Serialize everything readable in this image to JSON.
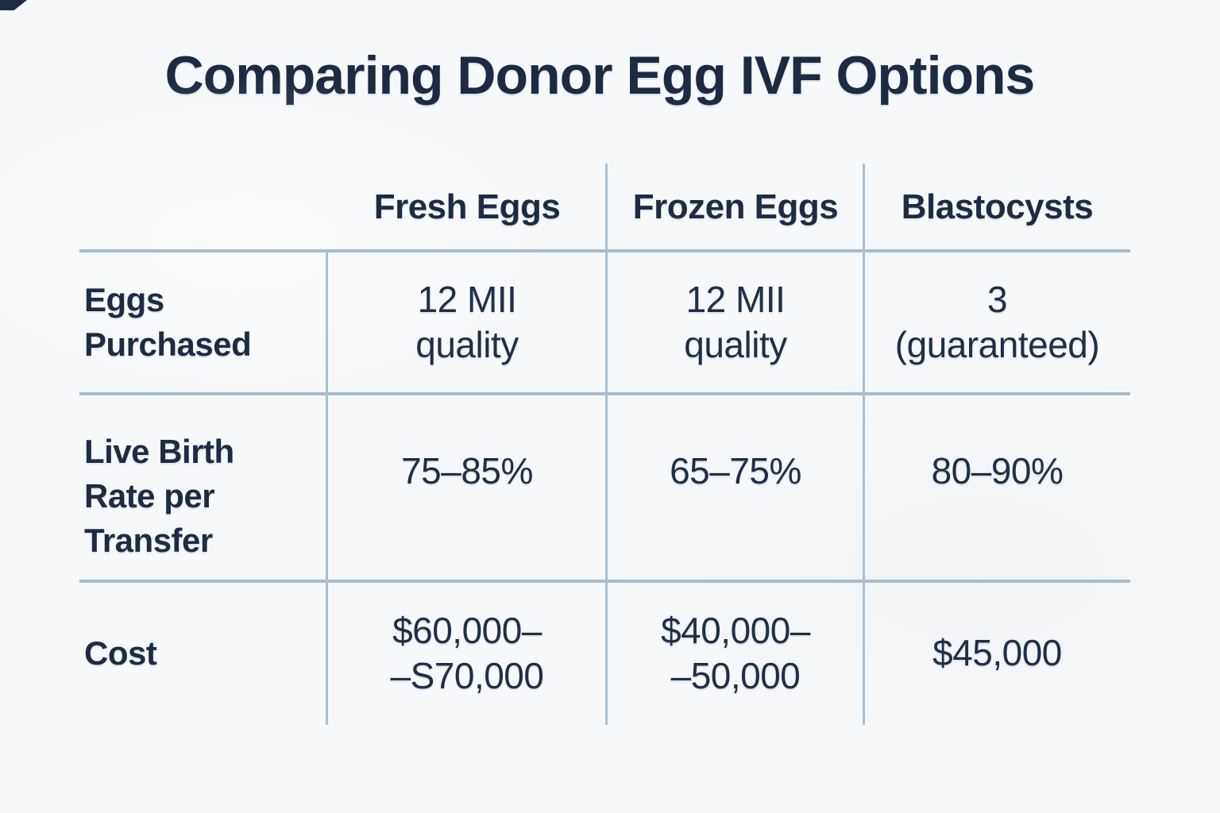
{
  "page": {
    "title": "Comparing Donor Egg IVF Options",
    "background_color": "#f7f8f9",
    "text_color": "#1d2c44",
    "grid_line_color": "#a8c0d4"
  },
  "table": {
    "columns": [
      "Fresh Eggs",
      "Frozen Eggs",
      "Blastocysts"
    ],
    "rows": [
      {
        "label": "Eggs Purchased",
        "label_lines": [
          "Eggs",
          "Purchased"
        ],
        "cells": [
          [
            "12 MII",
            "quality"
          ],
          [
            "12 MII",
            "quality"
          ],
          [
            "3",
            "(guaranteed)"
          ]
        ]
      },
      {
        "label": "Live Birth Rate per Transfer",
        "label_lines": [
          "Live Birth",
          "Rate per",
          "Transfer"
        ],
        "cells": [
          [
            "75–85%"
          ],
          [
            "65–75%"
          ],
          [
            "80–90%"
          ]
        ]
      },
      {
        "label": "Cost",
        "label_lines": [
          "Cost"
        ],
        "cells": [
          [
            "$60,000–",
            "–S70,000"
          ],
          [
            "$40,000–",
            "–50,000"
          ],
          [
            "$45,000"
          ]
        ]
      }
    ]
  }
}
